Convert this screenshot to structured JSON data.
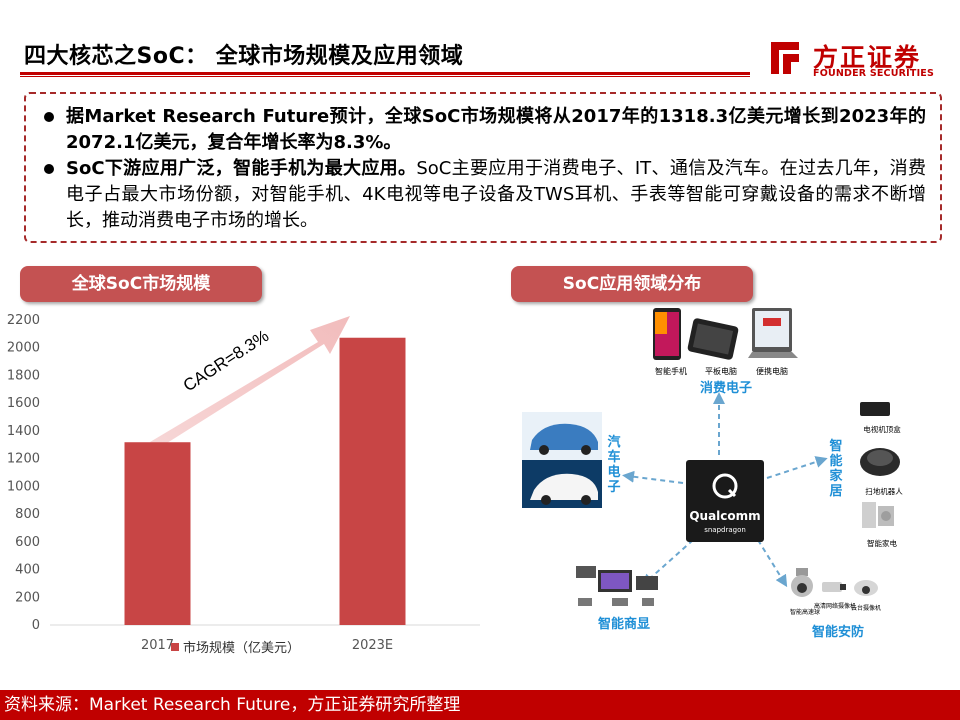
{
  "header": {
    "title": "四大核芯之SoC： 全球市场规模及应用领域",
    "logo_cn": "方正证券",
    "logo_en": "FOUNDER SECURITIES"
  },
  "summary": {
    "bullets": [
      {
        "bold": "据Market Research Future预计，全球SoC市场规模将从2017年的1318.3亿美元增长到2023年的2072.1亿美元，复合年增长率为8.3%。",
        "normal": ""
      },
      {
        "bold": "SoC下游应用广泛，智能手机为最大应用。",
        "normal": "SoC主要应用于消费电子、IT、通信及汽车。在过去几年，消费电子占最大市场份额，对智能手机、4K电视等电子设备及TWS耳机、手表等智能可穿戴设备的需求不断增长，推动消费电子市场的增长。"
      }
    ]
  },
  "section_left": {
    "label": "全球SoC市场规模"
  },
  "section_right": {
    "label": "SoC应用领域分布"
  },
  "chart_data": {
    "type": "bar",
    "categories": [
      "2017",
      "2023E"
    ],
    "series": [
      {
        "name": "市场规模（亿美元）",
        "values": [
          1318.3,
          2072.1
        ]
      }
    ],
    "ylim": [
      0,
      2200
    ],
    "yticks": [
      "0",
      "200",
      "400",
      "600",
      "800",
      "1000",
      "1200",
      "1400",
      "1600",
      "1800",
      "2000",
      "2200"
    ],
    "annotation": "CAGR=8.3%",
    "bar_color": "#c84545",
    "legend_position": "bottom"
  },
  "diagram": {
    "center_brand": "Qualcomm",
    "center_sub": "snapdragon",
    "groups": {
      "consumer": {
        "label": "消费电子",
        "items": [
          "智能手机",
          "平板电脑",
          "便携电脑"
        ]
      },
      "auto": {
        "label": "汽车电子"
      },
      "home": {
        "label": "智能家居",
        "items": [
          "电视机顶盒",
          "扫地机器人",
          "智能家电"
        ]
      },
      "display": {
        "label": "智能商显"
      },
      "security": {
        "label": "智能安防",
        "items": [
          "智能高速球",
          "高清网络摄像机",
          "云台摄像机"
        ]
      }
    },
    "label_color": "#1f8fd6"
  },
  "footer": {
    "text": "资料来源：Market Research Future，方正证券研究所整理"
  }
}
